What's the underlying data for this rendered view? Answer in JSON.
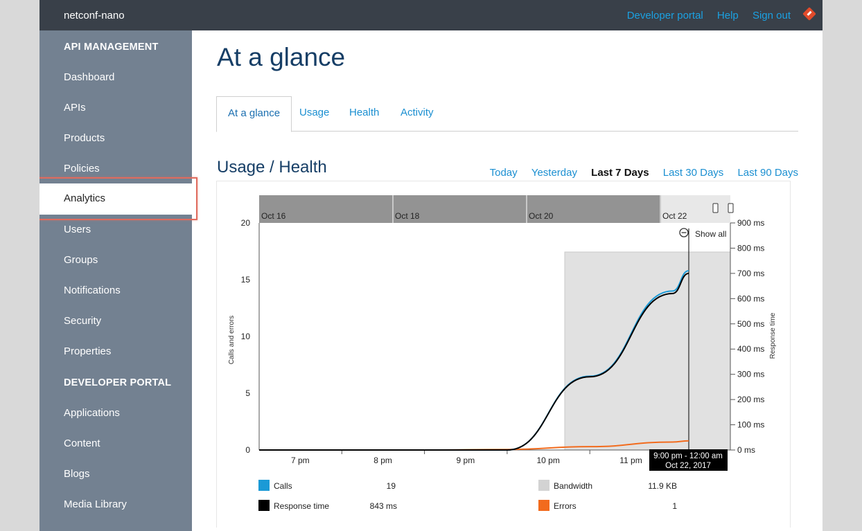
{
  "topbar": {
    "brand": "netconf-nano",
    "links": [
      "Developer portal",
      "Help",
      "Sign out"
    ]
  },
  "sidebar": {
    "section1": "API MANAGEMENT",
    "items1": [
      "Dashboard",
      "APIs",
      "Products",
      "Policies",
      "Analytics",
      "Users",
      "Groups",
      "Notifications",
      "Security",
      "Properties"
    ],
    "section2": "DEVELOPER PORTAL",
    "items2": [
      "Applications",
      "Content",
      "Blogs",
      "Media Library"
    ],
    "active": "Analytics"
  },
  "main": {
    "title": "At a glance",
    "tabs": [
      "At a glance",
      "Usage",
      "Health",
      "Activity"
    ],
    "section_title": "Usage / Health",
    "ranges": [
      "Today",
      "Yesterday",
      "Last 7 Days",
      "Last 30 Days",
      "Last 90 Days"
    ],
    "selected_range": "Last 7 Days"
  },
  "chart_data": {
    "type": "line",
    "navigator_labels": [
      "Oct 16",
      "Oct 18",
      "Oct 20",
      "Oct 22"
    ],
    "x_ticks": [
      "7 pm",
      "8 pm",
      "9 pm",
      "10 pm",
      "11 pm"
    ],
    "y_left_label": "Calls and errors",
    "y_left_ticks": [
      0,
      5,
      10,
      15,
      20
    ],
    "y_left_range": [
      0,
      20
    ],
    "y_right_label": "Response time",
    "y_right_ticks": [
      "0 ms",
      "100 ms",
      "200 ms",
      "300 ms",
      "400 ms",
      "500 ms",
      "600 ms",
      "700 ms",
      "800 ms",
      "900 ms"
    ],
    "y_right_range": [
      0,
      900
    ],
    "show_all": "Show all",
    "tooltip_range": "9:00 pm - 12:00 am",
    "tooltip_date": "Oct 22, 2017",
    "legend": [
      {
        "name": "Calls",
        "value": "19",
        "color": "#1b9ad6"
      },
      {
        "name": "Bandwidth",
        "value": "11.9 KB",
        "color": "#d3d3d3"
      },
      {
        "name": "Response time",
        "value": "843 ms",
        "color": "#000000"
      },
      {
        "name": "Errors",
        "value": "1",
        "color": "#f26b1d"
      }
    ],
    "series": [
      {
        "name": "Calls",
        "x": [
          18.0,
          19.0,
          20.0,
          21.0,
          22.0,
          23.0,
          24.0
        ],
        "values": [
          0,
          0,
          0,
          0,
          6.5,
          14,
          19
        ]
      },
      {
        "name": "Response time",
        "x": [
          18.0,
          19.0,
          20.0,
          21.0,
          22.0,
          23.0,
          24.0
        ],
        "values": [
          0,
          0,
          0,
          0,
          290,
          620,
          843
        ]
      },
      {
        "name": "Errors",
        "x": [
          18.0,
          19.0,
          20.0,
          21.0,
          22.0,
          23.0,
          24.0
        ],
        "values": [
          0,
          0,
          0,
          0.05,
          0.3,
          0.7,
          1
        ]
      }
    ]
  }
}
